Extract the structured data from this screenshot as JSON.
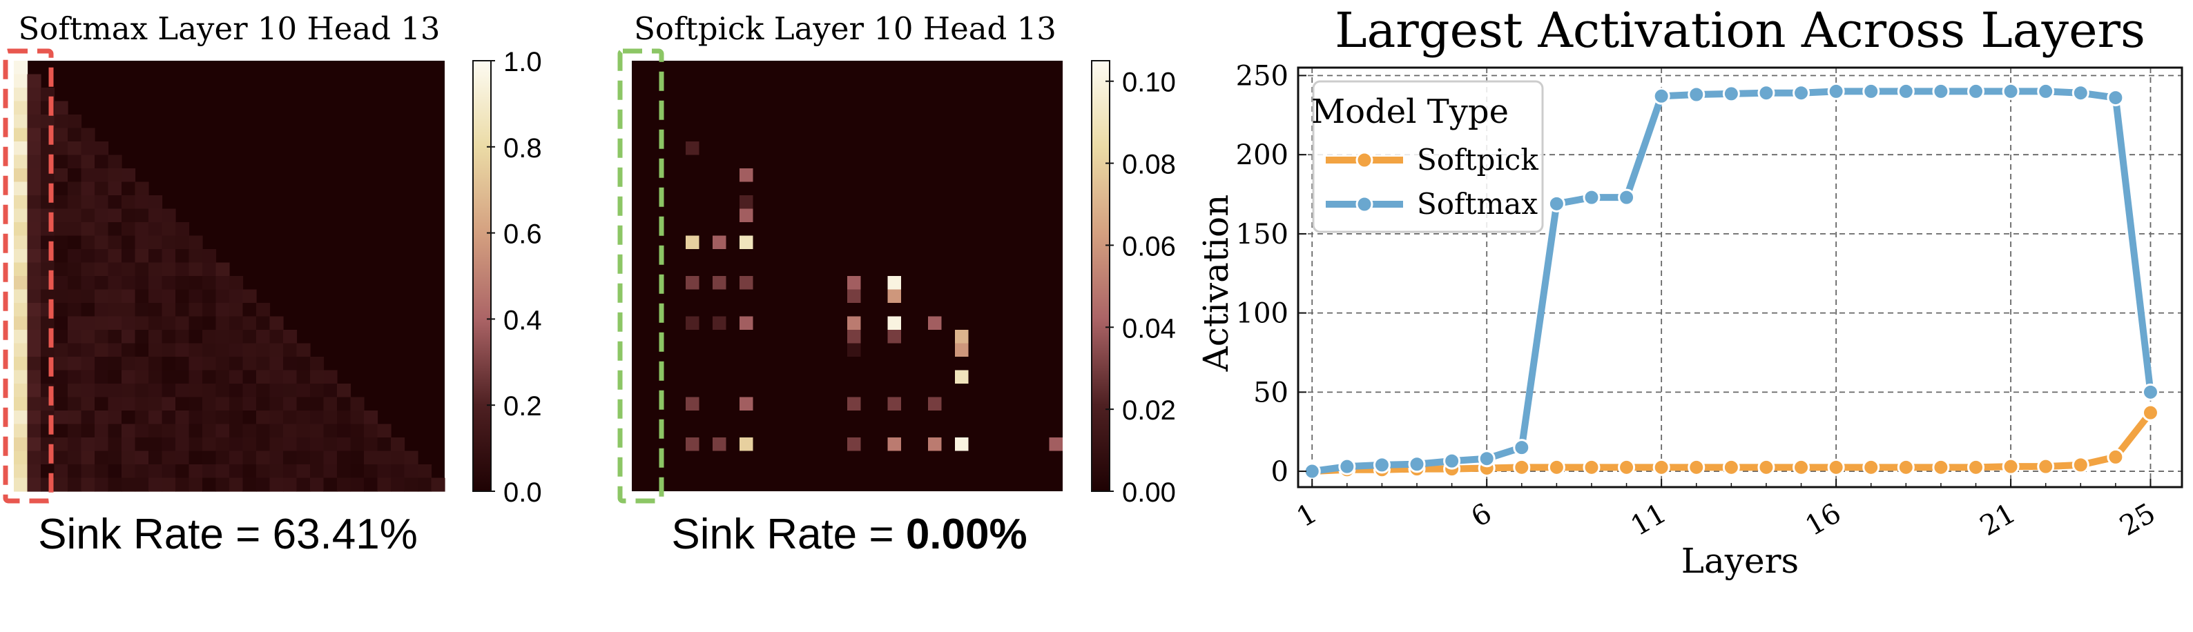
{
  "heatmaps": [
    {
      "title": "Softmax Layer 10 Head 13",
      "colorbar_ticks": [
        "0.0",
        "0.2",
        "0.4",
        "0.6",
        "0.8",
        "1.0"
      ],
      "colorbar_range": [
        0,
        1.0
      ],
      "sink_rate_prefix": "Sink Rate = ",
      "sink_rate_value": "63.41%",
      "sink_rate_bold": false,
      "highlight_color": "#e8574f"
    },
    {
      "title": "Softpick Layer 10 Head 13",
      "colorbar_ticks": [
        "0.00",
        "0.02",
        "0.04",
        "0.06",
        "0.08",
        "0.10"
      ],
      "colorbar_range": [
        0,
        0.105
      ],
      "sink_rate_prefix": "Sink Rate = ",
      "sink_rate_value": "0.00%",
      "sink_rate_bold": true,
      "highlight_color": "#8cc665"
    }
  ],
  "chart_data": [
    {
      "type": "heatmap",
      "title": "Softmax Layer 10 Head 13",
      "size": 32,
      "mask": "lower-triangular",
      "first_column_values": [
        0.97,
        0.95,
        0.9,
        0.85,
        0.88,
        0.8,
        0.92,
        0.85,
        0.78,
        0.9,
        0.82,
        0.86,
        0.8,
        0.84,
        0.88,
        0.8,
        0.76,
        0.86,
        0.82,
        0.78,
        0.88,
        0.84,
        0.8,
        0.86,
        0.82,
        0.8,
        0.9,
        0.84,
        0.78,
        0.8,
        0.82,
        0.86
      ],
      "note_values": "first (sink) column holds most attention; remaining lower-triangle entries 0.0-0.2"
    },
    {
      "type": "heatmap",
      "title": "Softpick Layer 10 Head 13",
      "size": 32,
      "mask": "lower-triangular",
      "sparse_cells": [
        {
          "row": 6,
          "col": 4,
          "value": 0.02
        },
        {
          "row": 8,
          "col": 8,
          "value": 0.04
        },
        {
          "row": 10,
          "col": 8,
          "value": 0.02
        },
        {
          "row": 11,
          "col": 8,
          "value": 0.04
        },
        {
          "row": 13,
          "col": 4,
          "value": 0.08
        },
        {
          "row": 13,
          "col": 6,
          "value": 0.04
        },
        {
          "row": 13,
          "col": 8,
          "value": 0.09
        },
        {
          "row": 16,
          "col": 4,
          "value": 0.03
        },
        {
          "row": 16,
          "col": 6,
          "value": 0.03
        },
        {
          "row": 16,
          "col": 8,
          "value": 0.03
        },
        {
          "row": 16,
          "col": 16,
          "value": 0.04
        },
        {
          "row": 16,
          "col": 19,
          "value": 0.1
        },
        {
          "row": 17,
          "col": 16,
          "value": 0.03
        },
        {
          "row": 17,
          "col": 19,
          "value": 0.06
        },
        {
          "row": 19,
          "col": 4,
          "value": 0.02
        },
        {
          "row": 19,
          "col": 6,
          "value": 0.02
        },
        {
          "row": 19,
          "col": 8,
          "value": 0.04
        },
        {
          "row": 19,
          "col": 16,
          "value": 0.05
        },
        {
          "row": 19,
          "col": 19,
          "value": 0.1
        },
        {
          "row": 19,
          "col": 22,
          "value": 0.04
        },
        {
          "row": 20,
          "col": 16,
          "value": 0.03
        },
        {
          "row": 20,
          "col": 19,
          "value": 0.03
        },
        {
          "row": 20,
          "col": 24,
          "value": 0.07
        },
        {
          "row": 21,
          "col": 16,
          "value": 0.01
        },
        {
          "row": 21,
          "col": 24,
          "value": 0.06
        },
        {
          "row": 23,
          "col": 24,
          "value": 0.09
        },
        {
          "row": 25,
          "col": 4,
          "value": 0.03
        },
        {
          "row": 25,
          "col": 8,
          "value": 0.04
        },
        {
          "row": 25,
          "col": 16,
          "value": 0.03
        },
        {
          "row": 25,
          "col": 19,
          "value": 0.03
        },
        {
          "row": 25,
          "col": 22,
          "value": 0.03
        },
        {
          "row": 28,
          "col": 4,
          "value": 0.03
        },
        {
          "row": 28,
          "col": 6,
          "value": 0.03
        },
        {
          "row": 28,
          "col": 8,
          "value": 0.08
        },
        {
          "row": 28,
          "col": 16,
          "value": 0.03
        },
        {
          "row": 28,
          "col": 19,
          "value": 0.05
        },
        {
          "row": 28,
          "col": 22,
          "value": 0.05
        },
        {
          "row": 28,
          "col": 24,
          "value": 0.1
        },
        {
          "row": 28,
          "col": 31,
          "value": 0.04
        }
      ]
    },
    {
      "type": "line",
      "title": "Largest Activation Across Layers",
      "xlabel": "Layers",
      "ylabel": "Activation",
      "x": [
        1,
        2,
        3,
        4,
        5,
        6,
        7,
        8,
        9,
        10,
        11,
        12,
        13,
        14,
        15,
        16,
        17,
        18,
        19,
        20,
        21,
        22,
        23,
        24,
        25
      ],
      "xticks": [
        1,
        6,
        11,
        16,
        21,
        25
      ],
      "yticks": [
        0,
        50,
        100,
        150,
        200,
        250
      ],
      "xlim": [
        0.6,
        25.9
      ],
      "ylim": [
        -10,
        255
      ],
      "grid": true,
      "legend_title": "Model Type",
      "legend_position": "top-left",
      "series": [
        {
          "name": "Softpick",
          "color": "#f2a342",
          "values": [
            0,
            1,
            1,
            1.5,
            1.5,
            2,
            2.5,
            2.5,
            2.5,
            2.5,
            2.5,
            2.5,
            2.5,
            2.5,
            2.5,
            2.5,
            2.5,
            2.5,
            2.5,
            2.5,
            3,
            3,
            4,
            9,
            37
          ]
        },
        {
          "name": "Softmax",
          "color": "#6aa7cf",
          "values": [
            0,
            3,
            4,
            4.5,
            6.5,
            8,
            15,
            169,
            173,
            173,
            237,
            238,
            238.5,
            239,
            239,
            240,
            240,
            240,
            240,
            240,
            240,
            240,
            239,
            236,
            50
          ]
        }
      ]
    }
  ]
}
